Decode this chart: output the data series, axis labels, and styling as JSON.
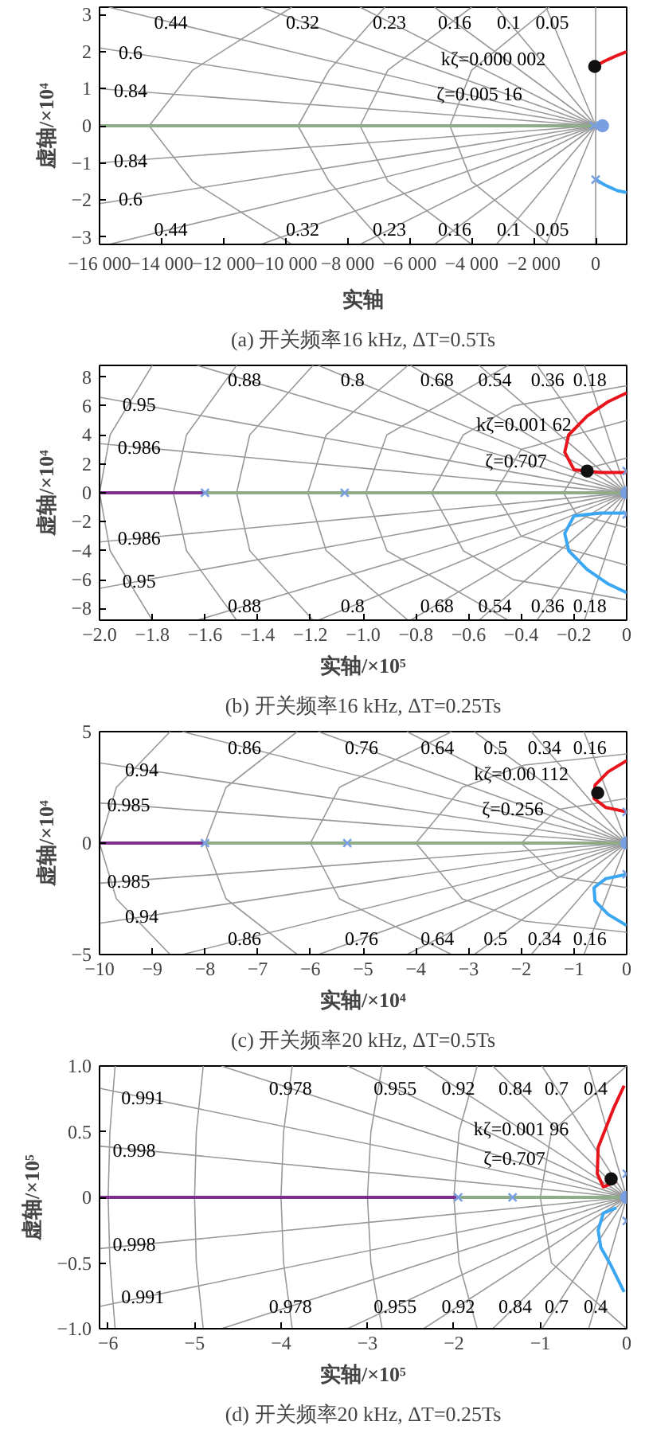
{
  "chart_data": [
    {
      "type": "line",
      "title": "(a) 开关频率16 kHz, ΔT=0.5Ts",
      "xlabel": "实轴",
      "ylabel": "虚轴/×10⁴",
      "xlim": [
        -16000,
        1000
      ],
      "ylim": [
        -3.2,
        3.2
      ],
      "xticks": [
        {
          "value": -16000,
          "label": "−16 000"
        },
        {
          "value": -14000,
          "label": "−14 000"
        },
        {
          "value": -12000,
          "label": "−12 000"
        },
        {
          "value": -10000,
          "label": "−10 000"
        },
        {
          "value": -8000,
          "label": "−8 000"
        },
        {
          "value": -6000,
          "label": "−6 000"
        },
        {
          "value": -4000,
          "label": "−4 000"
        },
        {
          "value": -2000,
          "label": "−2 000"
        },
        0
      ],
      "yticks": [
        {
          "value": -3,
          "label": "−3"
        },
        {
          "value": -2,
          "label": "−2"
        },
        {
          "value": -1,
          "label": "−1"
        },
        0,
        1,
        2,
        3
      ],
      "series": [
        {
          "color": "#999999",
          "x": [
            -1600,
            0,
            -1600
          ],
          "values": [
            3.2,
            0,
            -3.2
          ]
        },
        {
          "color": "#999999",
          "x": [
            -3200,
            0,
            -3200
          ],
          "values": [
            3.2,
            0,
            -3.2
          ]
        },
        {
          "color": "#999999",
          "x": [
            -5200,
            0,
            -5200
          ],
          "values": [
            3.2,
            0,
            -3.2
          ]
        },
        {
          "color": "#999999",
          "x": [
            -7600,
            0,
            -7600
          ],
          "values": [
            3.2,
            0,
            -3.2
          ]
        },
        {
          "color": "#999999",
          "x": [
            -10800,
            0,
            -10800
          ],
          "values": [
            3.2,
            0,
            -3.2
          ]
        },
        {
          "color": "#999999",
          "x": [
            -15700,
            0,
            -15700
          ],
          "values": [
            3.2,
            0,
            -3.2
          ]
        },
        {
          "color": "#999999",
          "x": [
            -16000,
            0,
            -16000
          ],
          "values": [
            2.1,
            0,
            -2.1
          ]
        },
        {
          "color": "#999999",
          "x": [
            -16000,
            0,
            -16000
          ],
          "values": [
            1.0,
            0,
            -1.0
          ]
        },
        {
          "color": "#999999",
          "x": [
            -9800,
            -13000,
            -14400,
            -13000,
            -9800
          ],
          "values": [
            3.2,
            1.5,
            0,
            -1.5,
            -3.2
          ]
        },
        {
          "color": "#999999",
          "x": [
            -6800,
            -8600,
            -9600,
            -8600,
            -6800
          ],
          "values": [
            3.2,
            1.5,
            0,
            -1.5,
            -3.2
          ]
        },
        {
          "color": "#999999",
          "x": [
            -4000,
            -6700,
            -7600,
            -6700,
            -4000
          ],
          "values": [
            3.2,
            1.5,
            0,
            -1.5,
            -3.2
          ]
        },
        {
          "color": "#999999",
          "x": [
            -1500,
            -4000,
            -4700,
            -4000,
            -1500
          ],
          "values": [
            3.2,
            1.5,
            0,
            -1.5,
            -3.2
          ]
        },
        {
          "color": "#999999",
          "x": [
            0,
            0
          ],
          "values": [
            3.2,
            -3.2
          ]
        },
        {
          "color": "#8fac89",
          "x": [
            -16000,
            0
          ],
          "values": [
            0,
            0
          ]
        },
        {
          "color": "#e8141c",
          "x": [
            -30,
            300,
            700,
            1000
          ],
          "values": [
            1.6,
            1.75,
            1.9,
            2.0
          ]
        },
        {
          "color": "#3ba7f2",
          "x": [
            0,
            300,
            700,
            1000
          ],
          "values": [
            -1.45,
            -1.6,
            -1.75,
            -1.8
          ]
        },
        {
          "type": "scatter",
          "marker": "cross",
          "color": "#7a9fe0",
          "x": [
            0,
            -60
          ],
          "values": [
            -1.45,
            0
          ]
        },
        {
          "type": "scatter",
          "marker": "circle",
          "color": "#7a9fe0",
          "x": [
            220
          ],
          "values": [
            0
          ]
        },
        {
          "type": "scatter",
          "marker": "circle",
          "color": "#111111",
          "x": [
            -30
          ],
          "values": [
            1.6
          ]
        }
      ],
      "annotations": [
        {
          "text": "kζ=0.000 002",
          "x": -3300,
          "y": 1.8
        },
        {
          "text": "ζ=0.005 16",
          "x": -3750,
          "y": 0.86
        },
        {
          "text": "0.44",
          "x": -13700,
          "y": 2.8
        },
        {
          "text": "0.32",
          "x": -9450,
          "y": 2.8
        },
        {
          "text": "0.23",
          "x": -6650,
          "y": 2.8
        },
        {
          "text": "0.16",
          "x": -4550,
          "y": 2.8
        },
        {
          "text": "0.1",
          "x": -2800,
          "y": 2.8
        },
        {
          "text": "0.05",
          "x": -1400,
          "y": 2.8
        },
        {
          "text": "0.6",
          "x": -15000,
          "y": 1.97
        },
        {
          "text": "0.84",
          "x": -15000,
          "y": 0.94
        },
        {
          "text": "0.84",
          "x": -15000,
          "y": -0.94
        },
        {
          "text": "0.6",
          "x": -15000,
          "y": -1.97
        },
        {
          "text": "0.44",
          "x": -13700,
          "y": -2.8
        },
        {
          "text": "0.32",
          "x": -9450,
          "y": -2.8
        },
        {
          "text": "0.23",
          "x": -6650,
          "y": -2.8
        },
        {
          "text": "0.16",
          "x": -4550,
          "y": -2.8
        },
        {
          "text": "0.1",
          "x": -2800,
          "y": -2.8
        },
        {
          "text": "0.05",
          "x": -1400,
          "y": -2.8
        }
      ]
    },
    {
      "type": "line",
      "title": "(b) 开关频率16 kHz, ΔT=0.25Ts",
      "xlabel": "实轴/×10⁵",
      "ylabel": "虚轴/×10⁴",
      "xlim": [
        -2.0,
        0
      ],
      "ylim": [
        -8.8,
        8.8
      ],
      "xticks": [
        {
          "value": -2.0,
          "label": "−2.0"
        },
        {
          "value": -1.8,
          "label": "−1.8"
        },
        {
          "value": -1.6,
          "label": "−1.6"
        },
        {
          "value": -1.4,
          "label": "−1.4"
        },
        {
          "value": -1.2,
          "label": "−1.2"
        },
        {
          "value": -1.0,
          "label": "−1.0"
        },
        {
          "value": -0.8,
          "label": "−0.8"
        },
        {
          "value": -0.6,
          "label": "−0.6"
        },
        {
          "value": -0.4,
          "label": "−0.4"
        },
        {
          "value": -0.2,
          "label": "−0.2"
        },
        0
      ],
      "yticks": [
        {
          "value": -8,
          "label": "−8"
        },
        {
          "value": -6,
          "label": "−6"
        },
        {
          "value": -4,
          "label": "−4"
        },
        {
          "value": -2,
          "label": "−2"
        },
        0,
        2,
        4,
        6,
        8
      ],
      "series": [
        {
          "color": "#999999",
          "x": [
            -0.16,
            0,
            -0.16
          ],
          "values": [
            8.8,
            0,
            -8.8
          ]
        },
        {
          "color": "#999999",
          "x": [
            -0.34,
            0,
            -0.34
          ],
          "values": [
            8.8,
            0,
            -8.8
          ]
        },
        {
          "color": "#999999",
          "x": [
            -0.56,
            0,
            -0.56
          ],
          "values": [
            8.8,
            0,
            -8.8
          ]
        },
        {
          "color": "#999999",
          "x": [
            -0.82,
            0,
            -0.82
          ],
          "values": [
            8.8,
            0,
            -8.8
          ]
        },
        {
          "color": "#999999",
          "x": [
            -1.17,
            0,
            -1.17
          ],
          "values": [
            8.8,
            0,
            -8.8
          ]
        },
        {
          "color": "#999999",
          "x": [
            -1.63,
            0,
            -1.63
          ],
          "values": [
            8.8,
            0,
            -8.8
          ]
        },
        {
          "color": "#999999",
          "x": [
            -2.0,
            0,
            -2.0
          ],
          "values": [
            6.6,
            0,
            -6.6
          ]
        },
        {
          "color": "#999999",
          "x": [
            -2.0,
            0,
            -2.0
          ],
          "values": [
            3.4,
            0,
            -3.4
          ]
        },
        {
          "color": "#999999",
          "x": [
            -1.8,
            -1.96,
            -2.0,
            -1.96,
            -1.8
          ],
          "values": [
            8.8,
            4,
            0,
            -4,
            -8.8
          ]
        },
        {
          "color": "#999999",
          "x": [
            -1.48,
            -1.67,
            -1.72,
            -1.67,
            -1.48
          ],
          "values": [
            8.8,
            4,
            0,
            -4,
            -8.8
          ]
        },
        {
          "color": "#999999",
          "x": [
            -1.19,
            -1.43,
            -1.48,
            -1.43,
            -1.19
          ],
          "values": [
            8.8,
            4,
            0,
            -4,
            -8.8
          ]
        },
        {
          "color": "#999999",
          "x": [
            -0.83,
            -1.14,
            -1.21,
            -1.14,
            -0.83
          ],
          "values": [
            8.8,
            4,
            0,
            -4,
            -8.8
          ]
        },
        {
          "color": "#999999",
          "x": [
            -0.45,
            -0.91,
            -0.99,
            -0.91,
            -0.45
          ],
          "values": [
            8.8,
            4,
            0,
            -4,
            -8.8
          ]
        },
        {
          "color": "#999999",
          "x": [
            0,
            -0.43,
            -0.62,
            -0.74,
            -0.62,
            -0.43,
            0
          ],
          "values": [
            7.4,
            6,
            4,
            0,
            -4,
            -6,
            -7.4
          ]
        },
        {
          "color": "#999999",
          "x": [
            0,
            -0.4,
            -0.5,
            -0.4,
            0
          ],
          "values": [
            5,
            3,
            0,
            -3,
            -5
          ]
        },
        {
          "color": "#999999",
          "x": [
            0,
            -0.19,
            -0.24,
            -0.19,
            0
          ],
          "values": [
            2.4,
            1.5,
            0,
            -1.5,
            -2.4
          ]
        },
        {
          "color": "#8fac89",
          "x": [
            -1.6,
            0
          ],
          "values": [
            0,
            0
          ]
        },
        {
          "color": "#7e2f8e",
          "x": [
            -2.0,
            -1.6
          ],
          "values": [
            0,
            0
          ]
        },
        {
          "color": "#e8141c",
          "x": [
            0,
            -0.1,
            -0.2,
            -0.235,
            -0.22,
            -0.15,
            -0.07,
            0
          ],
          "values": [
            1.4,
            1.4,
            1.6,
            2.8,
            4.0,
            5.3,
            6.3,
            6.9
          ]
        },
        {
          "color": "#3ba7f2",
          "x": [
            0,
            -0.1,
            -0.2,
            -0.235,
            -0.22,
            -0.15,
            -0.07,
            0
          ],
          "values": [
            -1.4,
            -1.4,
            -1.6,
            -2.8,
            -4.0,
            -5.3,
            -6.3,
            -6.9
          ]
        },
        {
          "type": "scatter",
          "marker": "cross",
          "color": "#7a9fe0",
          "x": [
            -1.6,
            -1.07,
            0,
            0
          ],
          "values": [
            0,
            0,
            1.5,
            -1.5
          ]
        },
        {
          "type": "scatter",
          "marker": "circle",
          "color": "#7a9fe0",
          "x": [
            0
          ],
          "values": [
            0
          ]
        },
        {
          "type": "scatter",
          "marker": "circle",
          "color": "#111111",
          "x": [
            -0.15
          ],
          "values": [
            1.5
          ]
        }
      ],
      "annotations": [
        {
          "text": "kζ=0.001 62",
          "x": -0.39,
          "y": 4.75
        },
        {
          "text": "ζ=0.707",
          "x": -0.42,
          "y": 2.2
        },
        {
          "text": "0.95",
          "x": -1.85,
          "y": 6.1
        },
        {
          "text": "0.986",
          "x": -1.85,
          "y": 3.15
        },
        {
          "text": "0.88",
          "x": -1.45,
          "y": 7.8
        },
        {
          "text": "0.8",
          "x": -1.04,
          "y": 7.8
        },
        {
          "text": "0.68",
          "x": -0.72,
          "y": 7.8
        },
        {
          "text": "0.54",
          "x": -0.5,
          "y": 7.8
        },
        {
          "text": "0.36",
          "x": -0.3,
          "y": 7.8
        },
        {
          "text": "0.18",
          "x": -0.14,
          "y": 7.8
        },
        {
          "text": "0.986",
          "x": -1.85,
          "y": -3.15
        },
        {
          "text": "0.95",
          "x": -1.85,
          "y": -6.1
        },
        {
          "text": "0.88",
          "x": -1.45,
          "y": -7.8
        },
        {
          "text": "0.8",
          "x": -1.04,
          "y": -7.8
        },
        {
          "text": "0.68",
          "x": -0.72,
          "y": -7.8
        },
        {
          "text": "0.54",
          "x": -0.5,
          "y": -7.8
        },
        {
          "text": "0.36",
          "x": -0.3,
          "y": -7.8
        },
        {
          "text": "0.18",
          "x": -0.14,
          "y": -7.8
        }
      ]
    },
    {
      "type": "line",
      "title": "(c) 开关频率20 kHz, ΔT=0.5Ts",
      "xlabel": "实轴/×10⁴",
      "ylabel": "虚轴/×10⁴",
      "xlim": [
        -10,
        0
      ],
      "ylim": [
        -5,
        5
      ],
      "xticks": [
        {
          "value": -10,
          "label": "−10"
        },
        {
          "value": -9,
          "label": "−9"
        },
        {
          "value": -8,
          "label": "−8"
        },
        {
          "value": -7,
          "label": "−7"
        },
        {
          "value": -6,
          "label": "−6"
        },
        {
          "value": -5,
          "label": "−5"
        },
        {
          "value": -4,
          "label": "−4"
        },
        {
          "value": -3,
          "label": "−3"
        },
        {
          "value": -2,
          "label": "−2"
        },
        {
          "value": -1,
          "label": "−1"
        },
        0
      ],
      "yticks": [
        {
          "value": -5,
          "label": "−5"
        },
        0,
        5
      ],
      "series": [
        {
          "color": "#999999",
          "x": [
            -0.81,
            0,
            -0.81
          ],
          "values": [
            5,
            0,
            -5
          ]
        },
        {
          "color": "#999999",
          "x": [
            -1.81,
            0,
            -1.81
          ],
          "values": [
            5,
            0,
            -5
          ]
        },
        {
          "color": "#999999",
          "x": [
            -2.89,
            0,
            -2.89
          ],
          "values": [
            5,
            0,
            -5
          ]
        },
        {
          "color": "#999999",
          "x": [
            -4.17,
            0,
            -4.17
          ],
          "values": [
            5,
            0,
            -5
          ]
        },
        {
          "color": "#999999",
          "x": [
            -5.85,
            0,
            -5.85
          ],
          "values": [
            5,
            0,
            -5
          ]
        },
        {
          "color": "#999999",
          "x": [
            -8.43,
            0,
            -8.43
          ],
          "values": [
            5,
            0,
            -5
          ]
        },
        {
          "color": "#999999",
          "x": [
            -10,
            0,
            -10
          ],
          "values": [
            3.6,
            0,
            -3.6
          ]
        },
        {
          "color": "#999999",
          "x": [
            -10,
            0,
            -10
          ],
          "values": [
            1.8,
            0,
            -1.8
          ]
        },
        {
          "color": "#999999",
          "x": [
            -8.66,
            -9.68,
            -10,
            -9.68,
            -8.66
          ],
          "values": [
            5,
            2.5,
            0,
            -2.5,
            -5
          ]
        },
        {
          "color": "#999999",
          "x": [
            -6.25,
            -7.6,
            -8,
            -7.6,
            -6.25
          ],
          "values": [
            5,
            2.5,
            0,
            -2.5,
            -5
          ]
        },
        {
          "color": "#999999",
          "x": [
            -3.32,
            -5.45,
            -6,
            -5.45,
            -3.32
          ],
          "values": [
            5,
            2.5,
            0,
            -2.5,
            -5
          ]
        },
        {
          "color": "#999999",
          "x": [
            0,
            -1.94,
            -3.12,
            -4,
            -3.12,
            -1.94,
            0
          ],
          "values": [
            4,
            3.5,
            2.5,
            0,
            -2.5,
            -3.5,
            -4
          ]
        },
        {
          "color": "#999999",
          "x": [
            0,
            -1.32,
            -2,
            -1.32,
            0
          ],
          "values": [
            2,
            1.5,
            0,
            -1.5,
            -2
          ]
        },
        {
          "color": "#8fac89",
          "x": [
            -8,
            0
          ],
          "values": [
            0,
            0
          ]
        },
        {
          "color": "#7e2f8e",
          "x": [
            -10,
            -8
          ],
          "values": [
            0,
            0
          ]
        },
        {
          "color": "#e8141c",
          "x": [
            0,
            -0.35,
            -0.6,
            -0.62,
            -0.4,
            0
          ],
          "values": [
            3.7,
            3.2,
            2.6,
            2.0,
            1.6,
            1.4
          ]
        },
        {
          "color": "#3ba7f2",
          "x": [
            0,
            -0.35,
            -0.6,
            -0.62,
            -0.4,
            0
          ],
          "values": [
            -3.7,
            -3.2,
            -2.6,
            -2.0,
            -1.6,
            -1.4
          ]
        },
        {
          "type": "scatter",
          "marker": "cross",
          "color": "#7a9fe0",
          "x": [
            -8,
            -5.3,
            0,
            0
          ],
          "values": [
            0,
            0,
            1.4,
            -1.4
          ]
        },
        {
          "type": "scatter",
          "marker": "circle",
          "color": "#7a9fe0",
          "x": [
            0
          ],
          "values": [
            0
          ]
        },
        {
          "type": "scatter",
          "marker": "circle",
          "color": "#111111",
          "x": [
            -0.55
          ],
          "values": [
            2.25
          ]
        }
      ],
      "annotations": [
        {
          "text": "kζ=0.00 112",
          "x": -2.0,
          "y": 3.1
        },
        {
          "text": "ζ=0.256",
          "x": -2.16,
          "y": 1.55
        },
        {
          "text": "0.94",
          "x": -9.2,
          "y": 3.3
        },
        {
          "text": "0.985",
          "x": -9.45,
          "y": 1.7
        },
        {
          "text": "0.86",
          "x": -7.25,
          "y": 4.3
        },
        {
          "text": "0.76",
          "x": -5.03,
          "y": 4.3
        },
        {
          "text": "0.64",
          "x": -3.59,
          "y": 4.3
        },
        {
          "text": "0.5",
          "x": -2.49,
          "y": 4.3
        },
        {
          "text": "0.34",
          "x": -1.56,
          "y": 4.3
        },
        {
          "text": "0.16",
          "x": -0.7,
          "y": 4.3
        },
        {
          "text": "0.985",
          "x": -9.45,
          "y": -1.7
        },
        {
          "text": "0.94",
          "x": -9.2,
          "y": -3.3
        },
        {
          "text": "0.86",
          "x": -7.25,
          "y": -4.3
        },
        {
          "text": "0.76",
          "x": -5.03,
          "y": -4.3
        },
        {
          "text": "0.64",
          "x": -3.59,
          "y": -4.3
        },
        {
          "text": "0.5",
          "x": -2.49,
          "y": -4.3
        },
        {
          "text": "0.34",
          "x": -1.56,
          "y": -4.3
        },
        {
          "text": "0.16",
          "x": -0.7,
          "y": -4.3
        }
      ]
    },
    {
      "type": "line",
      "title": "(d) 开关频率20 kHz, ΔT=0.25Ts",
      "xlabel": "实轴/×10⁵",
      "ylabel": "虚轴/×10⁵",
      "xlim": [
        -6.1,
        0
      ],
      "ylim": [
        -1,
        1
      ],
      "xticks": [
        {
          "value": -6,
          "label": "−6"
        },
        {
          "value": -5,
          "label": "−5"
        },
        {
          "value": -4,
          "label": "−4"
        },
        {
          "value": -3,
          "label": "−3"
        },
        {
          "value": -2,
          "label": "−2"
        },
        {
          "value": -1,
          "label": "−1"
        },
        0
      ],
      "yticks": [
        {
          "value": -1,
          "label": "−1.0"
        },
        {
          "value": -0.5,
          "label": "−0.5"
        },
        0,
        0.5,
        {
          "value": 1,
          "label": "1.0"
        }
      ],
      "series": [
        {
          "color": "#999999",
          "x": [
            -0.44,
            0,
            -0.44
          ],
          "values": [
            1,
            0,
            -1
          ]
        },
        {
          "color": "#999999",
          "x": [
            -0.98,
            0,
            -0.98
          ],
          "values": [
            1,
            0,
            -1
          ]
        },
        {
          "color": "#999999",
          "x": [
            -1.55,
            0,
            -1.55
          ],
          "values": [
            1,
            0,
            -1
          ]
        },
        {
          "color": "#999999",
          "x": [
            -2.35,
            0,
            -2.35
          ],
          "values": [
            1,
            0,
            -1
          ]
        },
        {
          "color": "#999999",
          "x": [
            -3.23,
            0,
            -3.23
          ],
          "values": [
            1,
            0,
            -1
          ]
        },
        {
          "color": "#999999",
          "x": [
            -4.69,
            0,
            -4.69
          ],
          "values": [
            1,
            0,
            -1
          ]
        },
        {
          "color": "#999999",
          "x": [
            -6.1,
            0,
            -6.1
          ],
          "values": [
            0.83,
            0,
            -0.83
          ]
        },
        {
          "color": "#999999",
          "x": [
            -6.1,
            0,
            -6.1
          ],
          "values": [
            0.39,
            0,
            -0.39
          ]
        },
        {
          "color": "#999999",
          "x": [
            -5.92,
            -5.98,
            -6,
            -5.98,
            -5.92
          ],
          "values": [
            1,
            0.5,
            0,
            -0.5,
            -1
          ]
        },
        {
          "color": "#999999",
          "x": [
            -4.9,
            -4.98,
            -5,
            -4.98,
            -4.9
          ],
          "values": [
            1,
            0.5,
            0,
            -0.5,
            -1
          ]
        },
        {
          "color": "#999999",
          "x": [
            -3.87,
            -3.97,
            -4,
            -3.97,
            -3.87
          ],
          "values": [
            1,
            0.5,
            0,
            -0.5,
            -1
          ]
        },
        {
          "color": "#999999",
          "x": [
            -2.83,
            -2.96,
            -3,
            -2.96,
            -2.83
          ],
          "values": [
            1,
            0.5,
            0,
            -0.5,
            -1
          ]
        },
        {
          "color": "#999999",
          "x": [
            -1.73,
            -1.94,
            -2,
            -1.94,
            -1.73
          ],
          "values": [
            1,
            0.5,
            0,
            -0.5,
            -1
          ]
        },
        {
          "color": "#999999",
          "x": [
            0,
            -0.87,
            -1,
            -0.87,
            0
          ],
          "values": [
            1,
            0.5,
            0,
            -0.5,
            -1
          ]
        },
        {
          "color": "#8fac89",
          "x": [
            -1.95,
            0
          ],
          "values": [
            0,
            0
          ]
        },
        {
          "color": "#7e2f8e",
          "x": [
            -6.1,
            -1.95
          ],
          "values": [
            0,
            0
          ]
        },
        {
          "color": "#e8141c",
          "x": [
            -0.12,
            -0.27,
            -0.34,
            -0.33,
            -0.15,
            -0.03
          ],
          "values": [
            0.12,
            0.08,
            0.18,
            0.38,
            0.68,
            0.85
          ]
        },
        {
          "color": "#3ba7f2",
          "x": [
            -0.12,
            -0.27,
            -0.33,
            -0.3,
            -0.18,
            -0.03
          ],
          "values": [
            -0.08,
            -0.12,
            -0.25,
            -0.38,
            -0.52,
            -0.72
          ]
        },
        {
          "type": "scatter",
          "marker": "cross",
          "color": "#7a9fe0",
          "x": [
            -1.95,
            -1.32,
            0,
            0
          ],
          "values": [
            0,
            0,
            0.18,
            -0.18
          ]
        },
        {
          "type": "scatter",
          "marker": "circle",
          "color": "#7a9fe0",
          "x": [
            0
          ],
          "values": [
            0
          ]
        },
        {
          "type": "scatter",
          "marker": "circle",
          "color": "#111111",
          "x": [
            -0.18
          ],
          "values": [
            0.14
          ]
        }
      ],
      "annotations": [
        {
          "text": "kζ=0.001 96",
          "x": -1.22,
          "y": 0.52
        },
        {
          "text": "ζ=0.707",
          "x": -1.3,
          "y": 0.3
        },
        {
          "text": "0.991",
          "x": -5.6,
          "y": 0.76
        },
        {
          "text": "0.998",
          "x": -5.7,
          "y": 0.36
        },
        {
          "text": "0.978",
          "x": -3.89,
          "y": 0.83
        },
        {
          "text": "0.955",
          "x": -2.68,
          "y": 0.83
        },
        {
          "text": "0.92",
          "x": -1.95,
          "y": 0.83
        },
        {
          "text": "0.84",
          "x": -1.29,
          "y": 0.83
        },
        {
          "text": "0.7",
          "x": -0.81,
          "y": 0.83
        },
        {
          "text": "0.4",
          "x": -0.36,
          "y": 0.83
        },
        {
          "text": "0.998",
          "x": -5.7,
          "y": -0.36
        },
        {
          "text": "0.991",
          "x": -5.6,
          "y": -0.76
        },
        {
          "text": "0.978",
          "x": -3.89,
          "y": -0.83
        },
        {
          "text": "0.955",
          "x": -2.68,
          "y": -0.83
        },
        {
          "text": "0.92",
          "x": -1.95,
          "y": -0.83
        },
        {
          "text": "0.84",
          "x": -1.29,
          "y": -0.83
        },
        {
          "text": "0.7",
          "x": -0.81,
          "y": -0.83
        },
        {
          "text": "0.4",
          "x": -0.36,
          "y": -0.83
        }
      ]
    }
  ]
}
